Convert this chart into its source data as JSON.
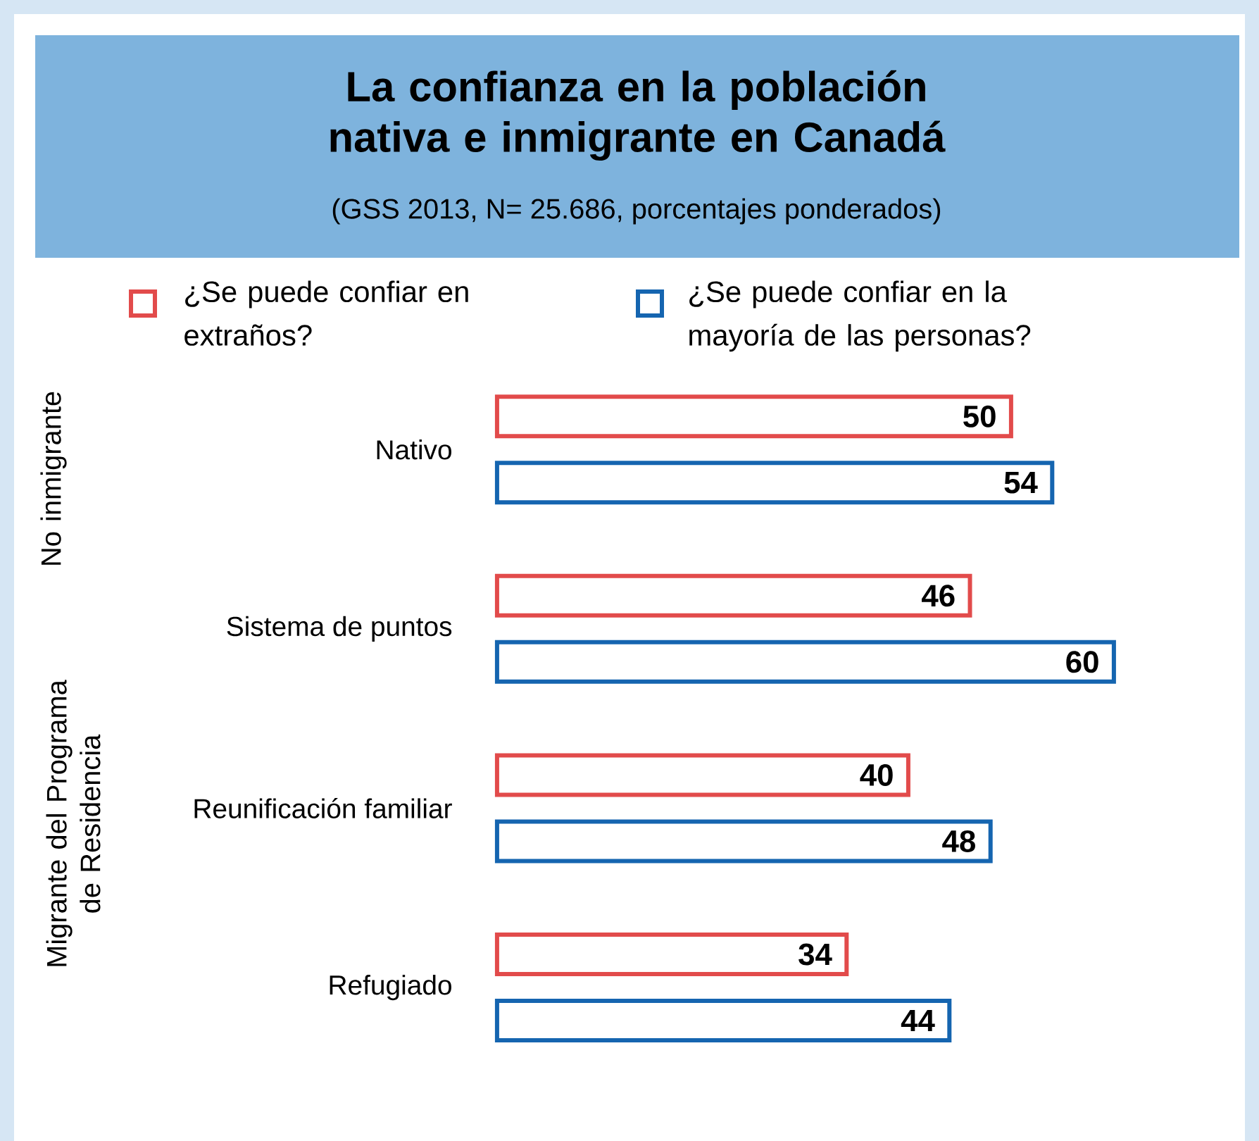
{
  "chart_data": {
    "type": "bar",
    "orientation": "horizontal",
    "title": "La confianza en la población nativa e inmigrante en Canadá",
    "subtitle": "(GSS 2013, N= 25.686, porcentajes ponderados)",
    "categories": [
      "Nativo",
      "Sistema de puntos",
      "Reunificación familiar",
      "Refugiado"
    ],
    "series": [
      {
        "name": "¿Se puede confiar en extraños?",
        "color": "#e24b4b",
        "values": [
          50,
          46,
          40,
          34
        ]
      },
      {
        "name": "¿Se puede confiar en la mayoría de las personas?",
        "color": "#1565b0",
        "values": [
          54,
          60,
          48,
          44
        ]
      }
    ],
    "data_labels": true,
    "legend": "top",
    "annotations": [
      "No inmigrante",
      "Migrante del Programa de Residencia"
    ]
  }
}
